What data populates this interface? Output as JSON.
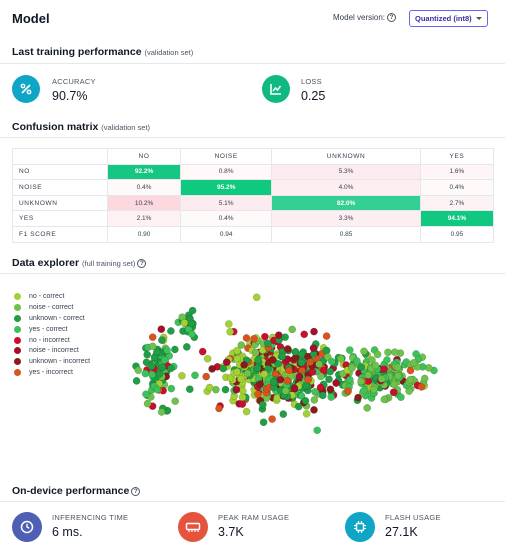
{
  "header": {
    "title": "Model",
    "model_version_label": "Model version:",
    "model_version_value": "Quantized (int8)"
  },
  "training": {
    "title": "Last training performance",
    "subtitle": "(validation set)",
    "accuracy_label": "ACCURACY",
    "accuracy_value": "90.7%",
    "loss_label": "LOSS",
    "loss_value": "0.25",
    "accuracy_icon": "percent-icon",
    "loss_icon": "trend-chart-icon",
    "accuracy_color": "#0ea5c6",
    "loss_color": "#10b981"
  },
  "confusion": {
    "title": "Confusion matrix",
    "subtitle": "(validation set)",
    "columns": [
      "NO",
      "NOISE",
      "UNKNOWN",
      "YES"
    ],
    "rows": [
      {
        "label": "NO",
        "cells": [
          "92.2%",
          "0.8%",
          "5.3%",
          "1.6%"
        ],
        "diag": 0
      },
      {
        "label": "NOISE",
        "cells": [
          "0.4%",
          "95.2%",
          "4.0%",
          "0.4%"
        ],
        "diag": 1
      },
      {
        "label": "UNKNOWN",
        "cells": [
          "10.2%",
          "5.1%",
          "82.0%",
          "2.7%"
        ],
        "diag": 2
      },
      {
        "label": "YES",
        "cells": [
          "2.1%",
          "0.4%",
          "3.3%",
          "94.1%"
        ],
        "diag": 3
      }
    ],
    "f1_label": "F1 SCORE",
    "f1": [
      "0.90",
      "0.94",
      "0.85",
      "0.95"
    ]
  },
  "explorer": {
    "title": "Data explorer",
    "subtitle": "(full training set)",
    "legend": [
      {
        "label": "no - correct",
        "color": "#a3d133"
      },
      {
        "label": "noise - correct",
        "color": "#6cc24a"
      },
      {
        "label": "unknown - correct",
        "color": "#1f9e45"
      },
      {
        "label": "yes - correct",
        "color": "#3cc25a"
      },
      {
        "label": "no - incorrect",
        "color": "#c8102e"
      },
      {
        "label": "noise - incorrect",
        "color": "#a50f2d"
      },
      {
        "label": "unknown - incorrect",
        "color": "#8b1a1a"
      },
      {
        "label": "yes - incorrect",
        "color": "#d9531e"
      }
    ]
  },
  "device": {
    "title": "On-device performance",
    "inferencing_label": "INFERENCING TIME",
    "inferencing_value": "6 ms.",
    "ram_label": "PEAK RAM USAGE",
    "ram_value": "3.7K",
    "flash_label": "FLASH USAGE",
    "flash_value": "27.1K",
    "inferencing_icon": "clock-icon",
    "ram_icon": "memory-icon",
    "flash_icon": "chip-icon",
    "inferencing_color": "#4f5fb3",
    "ram_color": "#e5533d",
    "flash_color": "#0ea5c6"
  }
}
